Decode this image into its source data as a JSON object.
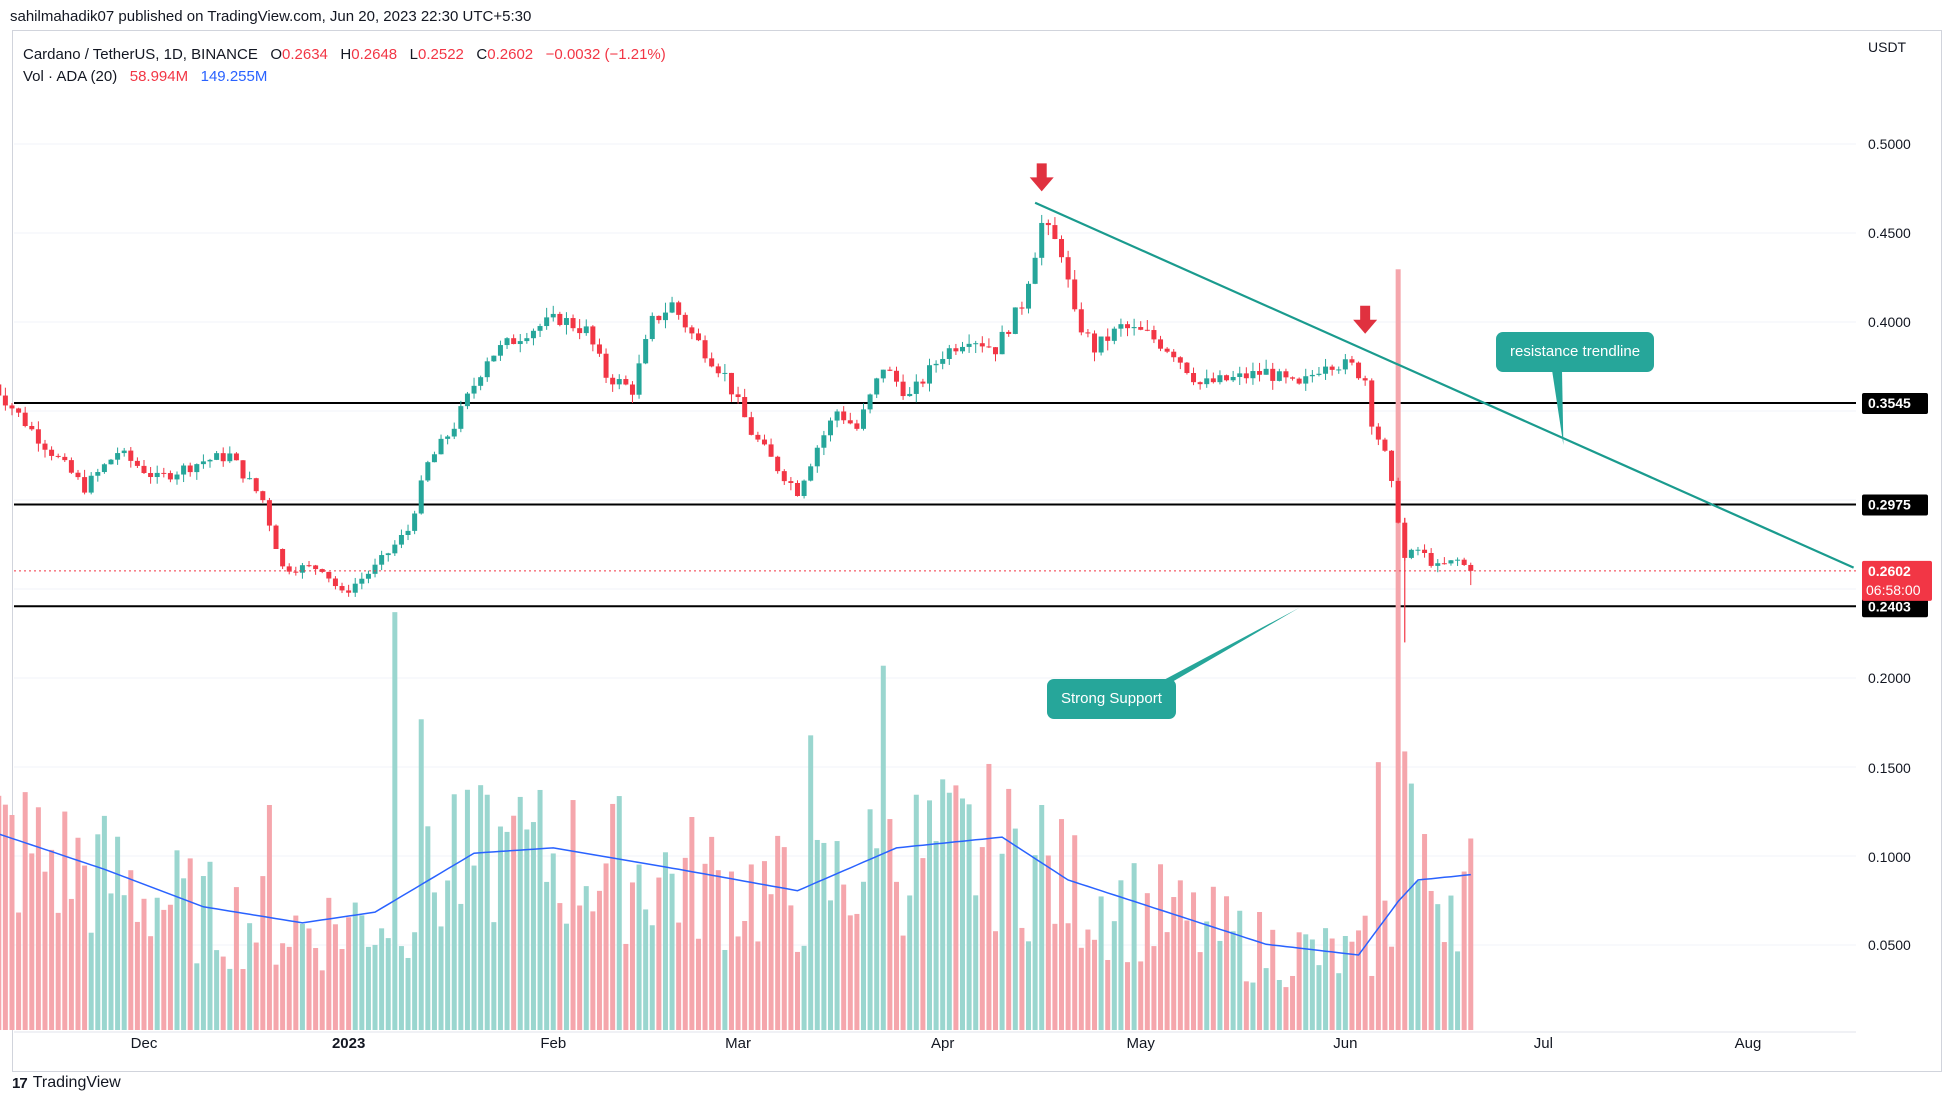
{
  "publisher_line": "sahilmahadik07 published on TradingView.com, Jun 20, 2023 22:30 UTC+5:30",
  "legend": {
    "symbol": "Cardano / TetherUS, 1D, BINANCE",
    "o_label": "O",
    "o": "0.2634",
    "h_label": "H",
    "h": "0.2648",
    "l_label": "L",
    "l": "0.2522",
    "c_label": "C",
    "c": "0.2602",
    "change": "−0.0032 (−1.21%)",
    "vol_label": "Vol · ADA (20)",
    "vol": "58.994M",
    "vol_ma": "149.255M"
  },
  "currency_label": "USDT",
  "brand": {
    "logo": "17",
    "name": "TradingView"
  },
  "colors": {
    "up": "#26a69a",
    "down": "#f23645",
    "trend": "#1a9b8e",
    "vol_ma": "#2962ff",
    "callout": "#26a69a"
  },
  "chart_data": {
    "type": "candlestick",
    "price_axis": {
      "ticks": [
        "0.5000",
        "0.4500",
        "0.4000",
        "0.3545",
        "0.2975",
        "0.2602",
        "0.2403",
        "0.2000",
        "0.1500",
        "0.1000",
        "0.0500"
      ],
      "range": [
        0.0,
        0.52
      ]
    },
    "time_axis": {
      "labels": [
        "Dec",
        "2023",
        "Feb",
        "Mar",
        "Apr",
        "May",
        "Jun",
        "Jul",
        "Aug"
      ],
      "label_dates": [
        "2022-12-01",
        "2023-01-01",
        "2023-02-01",
        "2023-03-01",
        "2023-04-01",
        "2023-05-01",
        "2023-06-01",
        "2023-07-01",
        "2023-08-01"
      ]
    },
    "current_price": {
      "value": "0.2602",
      "countdown": "06:58:00"
    },
    "levels": [
      {
        "label": "0.3545",
        "value": 0.3545
      },
      {
        "label": "0.2975",
        "value": 0.2975
      },
      {
        "label": "0.2403",
        "value": 0.2403
      }
    ],
    "trendline": {
      "start": {
        "date": "2023-04-15",
        "price": 0.467
      },
      "end": {
        "date": "2023-08-17",
        "price": 0.262
      }
    },
    "markers": [
      {
        "date": "2023-04-16",
        "price": 0.47
      },
      {
        "date": "2023-06-04",
        "price": 0.39
      }
    ],
    "annotations": [
      {
        "text": "resistance trendline",
        "anchor": {
          "date": "2023-07-01",
          "price": 0.331
        }
      },
      {
        "text": "Strong Support",
        "anchor": {
          "date": "2023-05-22",
          "price": 0.235
        }
      }
    ],
    "start_date": "2022-11-08",
    "anchors": [
      [
        "2022-11-08",
        0.365
      ],
      [
        "2022-11-15",
        0.335
      ],
      [
        "2022-11-22",
        0.307
      ],
      [
        "2022-11-27",
        0.327
      ],
      [
        "2022-12-03",
        0.312
      ],
      [
        "2022-12-10",
        0.322
      ],
      [
        "2022-12-14",
        0.325
      ],
      [
        "2022-12-19",
        0.3
      ],
      [
        "2022-12-22",
        0.262
      ],
      [
        "2022-12-28",
        0.262
      ],
      [
        "2022-12-31",
        0.247
      ],
      [
        "2023-01-05",
        0.262
      ],
      [
        "2023-01-10",
        0.283
      ],
      [
        "2023-01-13",
        0.32
      ],
      [
        "2023-01-17",
        0.342
      ],
      [
        "2023-01-22",
        0.38
      ],
      [
        "2023-01-28",
        0.395
      ],
      [
        "2023-02-02",
        0.402
      ],
      [
        "2023-02-06",
        0.395
      ],
      [
        "2023-02-09",
        0.37
      ],
      [
        "2023-02-13",
        0.362
      ],
      [
        "2023-02-16",
        0.4
      ],
      [
        "2023-02-19",
        0.41
      ],
      [
        "2023-02-22",
        0.393
      ],
      [
        "2023-02-27",
        0.37
      ],
      [
        "2023-03-03",
        0.338
      ],
      [
        "2023-03-07",
        0.318
      ],
      [
        "2023-03-10",
        0.305
      ],
      [
        "2023-03-13",
        0.33
      ],
      [
        "2023-03-16",
        0.35
      ],
      [
        "2023-03-19",
        0.34
      ],
      [
        "2023-03-23",
        0.375
      ],
      [
        "2023-03-27",
        0.358
      ],
      [
        "2023-04-01",
        0.382
      ],
      [
        "2023-04-05",
        0.392
      ],
      [
        "2023-04-09",
        0.385
      ],
      [
        "2023-04-13",
        0.41
      ],
      [
        "2023-04-16",
        0.455
      ],
      [
        "2023-04-19",
        0.44
      ],
      [
        "2023-04-21",
        0.403
      ],
      [
        "2023-04-24",
        0.385
      ],
      [
        "2023-04-28",
        0.397
      ],
      [
        "2023-05-02",
        0.393
      ],
      [
        "2023-05-06",
        0.383
      ],
      [
        "2023-05-10",
        0.365
      ],
      [
        "2023-05-15",
        0.368
      ],
      [
        "2023-05-20",
        0.372
      ],
      [
        "2023-05-25",
        0.363
      ],
      [
        "2023-05-29",
        0.378
      ],
      [
        "2023-06-02",
        0.375
      ],
      [
        "2023-06-04",
        0.368
      ],
      [
        "2023-06-05",
        0.345
      ],
      [
        "2023-06-07",
        0.325
      ],
      [
        "2023-06-09",
        0.29
      ],
      [
        "2023-06-10",
        0.267
      ],
      [
        "2023-06-12",
        0.272
      ],
      [
        "2023-06-15",
        0.262
      ],
      [
        "2023-06-18",
        0.266
      ],
      [
        "2023-06-20",
        0.2602
      ]
    ],
    "volume": {
      "label": "Vol · ADA (20)",
      "scale_max": 160,
      "ma_anchors": [
        [
          "2022-11-08",
          37
        ],
        [
          "2022-11-25",
          30
        ],
        [
          "2022-12-10",
          23
        ],
        [
          "2022-12-25",
          20
        ],
        [
          "2023-01-05",
          22
        ],
        [
          "2023-01-20",
          33
        ],
        [
          "2023-02-01",
          34
        ],
        [
          "2023-02-20",
          30
        ],
        [
          "2023-03-10",
          26
        ],
        [
          "2023-03-25",
          34
        ],
        [
          "2023-04-10",
          36
        ],
        [
          "2023-04-20",
          28
        ],
        [
          "2023-05-05",
          22
        ],
        [
          "2023-05-20",
          16
        ],
        [
          "2023-06-03",
          14
        ],
        [
          "2023-06-09",
          24
        ],
        [
          "2023-06-12",
          28
        ],
        [
          "2023-06-20",
          29
        ]
      ],
      "spikes": [
        [
          "2022-12-20",
          42
        ],
        [
          "2023-01-08",
          78
        ],
        [
          "2023-01-12",
          58
        ],
        [
          "2023-01-17",
          44
        ],
        [
          "2023-01-26",
          40
        ],
        [
          "2023-03-12",
          55
        ],
        [
          "2023-03-23",
          68
        ],
        [
          "2023-04-11",
          45
        ],
        [
          "2023-04-16",
          42
        ],
        [
          "2023-06-06",
          50
        ],
        [
          "2023-06-09",
          142
        ],
        [
          "2023-06-10",
          52
        ],
        [
          "2023-06-11",
          46
        ]
      ]
    }
  }
}
